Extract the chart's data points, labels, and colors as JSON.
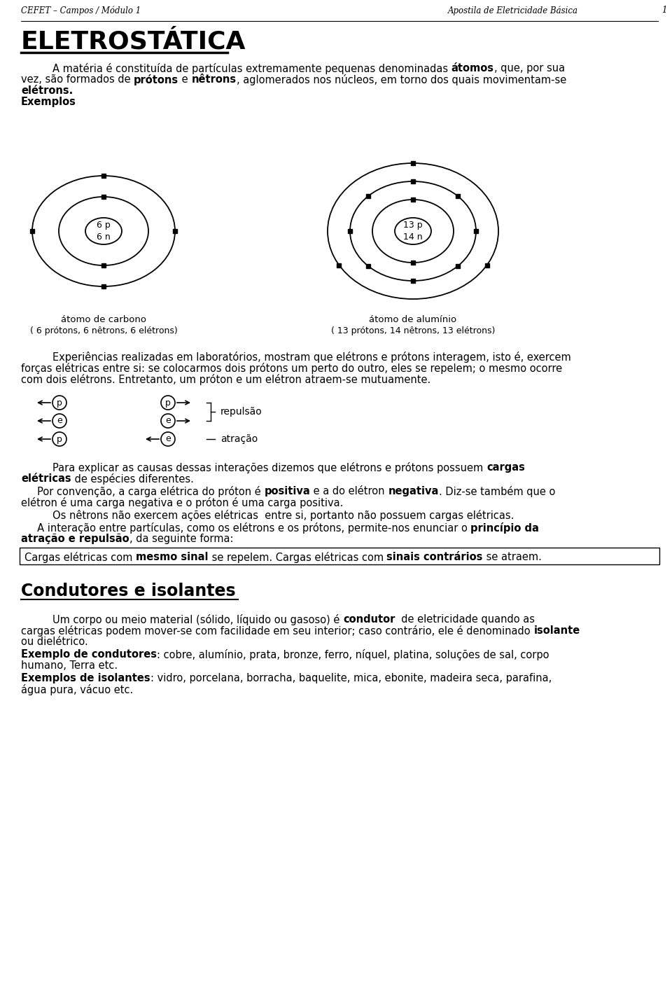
{
  "header_left": "CEFET – Campos / Módulo 1",
  "header_right": "Apostila de Eletricidade Básica",
  "header_page": "1",
  "title": "ELETROSTÁTICA",
  "bg_color": "#ffffff"
}
